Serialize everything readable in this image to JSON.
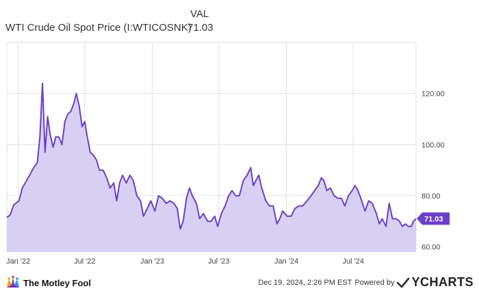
{
  "header": {
    "val_label": "VAL",
    "series_name": "WTI Crude Oil Spot Price (I:WTICOSNK)",
    "series_value": "71.03"
  },
  "footer": {
    "brand": "The Motley Fool",
    "timestamp": "Dec 19, 2024, 2:26 PM EST",
    "powered_by": "Powered by",
    "provider": "YCHARTS"
  },
  "colors": {
    "line": "#6a3fc8",
    "fill": "#d6cdf2",
    "grid": "#e2e2e2",
    "label_bg": "#6a3fc8"
  },
  "chart_data": {
    "type": "area",
    "title": "",
    "xlabel": "",
    "ylabel": "",
    "ylim": [
      58,
      140
    ],
    "xlim": [
      "2021-12-01",
      "2024-12-19"
    ],
    "y_ticks": [
      {
        "value": 60,
        "label": "60.00"
      },
      {
        "value": 80,
        "label": "80.00"
      },
      {
        "value": 100,
        "label": "100.00"
      },
      {
        "value": 120,
        "label": "120.00"
      }
    ],
    "x_ticks": [
      {
        "date": "2022-01-01",
        "label": "Jan '22"
      },
      {
        "date": "2022-07-01",
        "label": "Jul '22"
      },
      {
        "date": "2023-01-01",
        "label": "Jan '23"
      },
      {
        "date": "2023-07-01",
        "label": "Jul '23"
      },
      {
        "date": "2024-01-01",
        "label": "Jan '24"
      },
      {
        "date": "2024-07-01",
        "label": "Jul '24"
      }
    ],
    "grid": true,
    "last_value": 71.03,
    "last_value_label": "71.03",
    "series": [
      {
        "name": "WTI Crude Oil Spot Price (I:WTICOSNK)",
        "points": [
          [
            "2021-12-01",
            71.5
          ],
          [
            "2021-12-10",
            72.5
          ],
          [
            "2021-12-20",
            76.5
          ],
          [
            "2022-01-03",
            78
          ],
          [
            "2022-01-12",
            83
          ],
          [
            "2022-01-22",
            85.5
          ],
          [
            "2022-02-01",
            88
          ],
          [
            "2022-02-12",
            91
          ],
          [
            "2022-02-22",
            93
          ],
          [
            "2022-03-01",
            103
          ],
          [
            "2022-03-08",
            124
          ],
          [
            "2022-03-15",
            97
          ],
          [
            "2022-03-22",
            111
          ],
          [
            "2022-03-29",
            104
          ],
          [
            "2022-04-06",
            99
          ],
          [
            "2022-04-13",
            103
          ],
          [
            "2022-04-22",
            103
          ],
          [
            "2022-04-30",
            100
          ],
          [
            "2022-05-08",
            109
          ],
          [
            "2022-05-16",
            112
          ],
          [
            "2022-05-24",
            113
          ],
          [
            "2022-06-01",
            116
          ],
          [
            "2022-06-08",
            120
          ],
          [
            "2022-06-16",
            115
          ],
          [
            "2022-06-24",
            107
          ],
          [
            "2022-07-01",
            109
          ],
          [
            "2022-07-08",
            103
          ],
          [
            "2022-07-16",
            97
          ],
          [
            "2022-07-24",
            96
          ],
          [
            "2022-08-02",
            94
          ],
          [
            "2022-08-10",
            90
          ],
          [
            "2022-08-20",
            90
          ],
          [
            "2022-08-30",
            87
          ],
          [
            "2022-09-08",
            83
          ],
          [
            "2022-09-18",
            85
          ],
          [
            "2022-09-26",
            78
          ],
          [
            "2022-10-04",
            85
          ],
          [
            "2022-10-12",
            88
          ],
          [
            "2022-10-22",
            85
          ],
          [
            "2022-11-01",
            88
          ],
          [
            "2022-11-10",
            86
          ],
          [
            "2022-11-20",
            80
          ],
          [
            "2022-11-30",
            78
          ],
          [
            "2022-12-08",
            72
          ],
          [
            "2022-12-18",
            75
          ],
          [
            "2022-12-28",
            78
          ],
          [
            "2023-01-08",
            74
          ],
          [
            "2023-01-18",
            80
          ],
          [
            "2023-01-28",
            79
          ],
          [
            "2023-02-08",
            77
          ],
          [
            "2023-02-18",
            78
          ],
          [
            "2023-03-01",
            77
          ],
          [
            "2023-03-10",
            75
          ],
          [
            "2023-03-18",
            67
          ],
          [
            "2023-03-26",
            70
          ],
          [
            "2023-04-04",
            79
          ],
          [
            "2023-04-12",
            83
          ],
          [
            "2023-04-20",
            80
          ],
          [
            "2023-05-01",
            77
          ],
          [
            "2023-05-10",
            71
          ],
          [
            "2023-05-20",
            73
          ],
          [
            "2023-06-01",
            70
          ],
          [
            "2023-06-10",
            70
          ],
          [
            "2023-06-20",
            72
          ],
          [
            "2023-06-28",
            68
          ],
          [
            "2023-07-08",
            73
          ],
          [
            "2023-07-18",
            76
          ],
          [
            "2023-07-28",
            80
          ],
          [
            "2023-08-06",
            82
          ],
          [
            "2023-08-16",
            80
          ],
          [
            "2023-08-26",
            80
          ],
          [
            "2023-09-06",
            86
          ],
          [
            "2023-09-16",
            88
          ],
          [
            "2023-09-26",
            91
          ],
          [
            "2023-10-03",
            84
          ],
          [
            "2023-10-10",
            86
          ],
          [
            "2023-10-18",
            88
          ],
          [
            "2023-10-26",
            83
          ],
          [
            "2023-11-06",
            78
          ],
          [
            "2023-11-16",
            76
          ],
          [
            "2023-11-26",
            76
          ],
          [
            "2023-12-06",
            69
          ],
          [
            "2023-12-14",
            71
          ],
          [
            "2023-12-22",
            74
          ],
          [
            "2024-01-03",
            72
          ],
          [
            "2024-01-14",
            72
          ],
          [
            "2024-01-24",
            75
          ],
          [
            "2024-02-04",
            76
          ],
          [
            "2024-02-14",
            76
          ],
          [
            "2024-02-26",
            78
          ],
          [
            "2024-03-08",
            80
          ],
          [
            "2024-03-18",
            82
          ],
          [
            "2024-03-28",
            84
          ],
          [
            "2024-04-05",
            87
          ],
          [
            "2024-04-12",
            86
          ],
          [
            "2024-04-20",
            82
          ],
          [
            "2024-04-30",
            83
          ],
          [
            "2024-05-10",
            80
          ],
          [
            "2024-05-20",
            79
          ],
          [
            "2024-05-30",
            79
          ],
          [
            "2024-06-08",
            76
          ],
          [
            "2024-06-18",
            80
          ],
          [
            "2024-06-28",
            82
          ],
          [
            "2024-07-06",
            84
          ],
          [
            "2024-07-14",
            82
          ],
          [
            "2024-07-24",
            78
          ],
          [
            "2024-08-02",
            74
          ],
          [
            "2024-08-12",
            78
          ],
          [
            "2024-08-22",
            77
          ],
          [
            "2024-09-02",
            73
          ],
          [
            "2024-09-10",
            69
          ],
          [
            "2024-09-18",
            71
          ],
          [
            "2024-09-28",
            68
          ],
          [
            "2024-10-07",
            77
          ],
          [
            "2024-10-16",
            71
          ],
          [
            "2024-10-26",
            71
          ],
          [
            "2024-11-04",
            70
          ],
          [
            "2024-11-12",
            68
          ],
          [
            "2024-11-20",
            69
          ],
          [
            "2024-11-28",
            68
          ],
          [
            "2024-12-06",
            68
          ],
          [
            "2024-12-12",
            70
          ],
          [
            "2024-12-19",
            71.03
          ]
        ]
      }
    ]
  }
}
